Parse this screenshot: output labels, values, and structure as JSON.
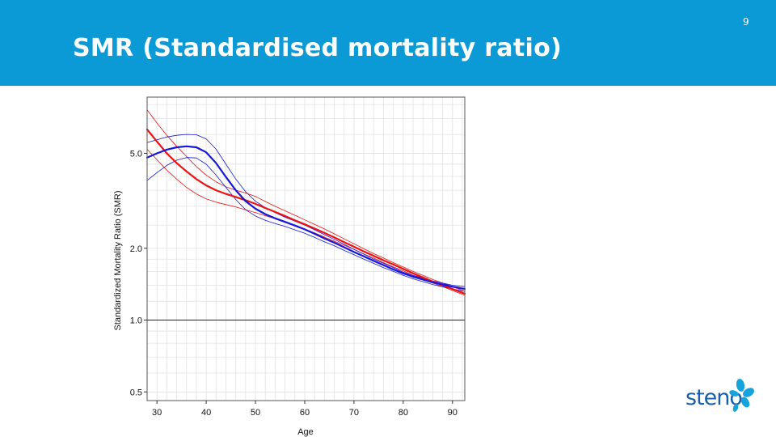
{
  "slide": {
    "title": "SMR (Standardised mortality ratio)",
    "page_number": "9"
  },
  "logo": {
    "text": "steno",
    "text_color": "#1b5fa8",
    "petal_color": "#16a3dc"
  },
  "colors": {
    "header_bg": "#0c9ad6",
    "red": "#ee1111",
    "blue": "#1616dd",
    "grid": "#e2e2e2",
    "reference_line": "#222222"
  },
  "chart_data": {
    "type": "line",
    "xlabel": "Age",
    "ylabel": "Standardized Mortality Ratio (SMR)",
    "x_ticks": [
      30,
      40,
      50,
      60,
      70,
      80,
      90
    ],
    "x_tick_labels": [
      "30",
      "40",
      "50",
      "60",
      "70",
      "80",
      "90"
    ],
    "y_scale": "log",
    "y_ticks": [
      0.5,
      1.0,
      2.0,
      5.0
    ],
    "y_tick_labels": [
      "0.5",
      "1.0",
      "2.0",
      "5.0"
    ],
    "xlim": [
      28,
      92.5
    ],
    "ylim": [
      0.46,
      8.6
    ],
    "grid": true,
    "reference_line": 1.0,
    "x": [
      28,
      30,
      32,
      34,
      36,
      38,
      40,
      42,
      44,
      46,
      48,
      50,
      52,
      54,
      56,
      58,
      60,
      62,
      64,
      66,
      68,
      70,
      72,
      74,
      76,
      78,
      80,
      82,
      84,
      86,
      88,
      90,
      92.5
    ],
    "series": [
      {
        "color": "#ee1111",
        "width": 2.2,
        "values": [
          6.3,
          5.6,
          5.0,
          4.55,
          4.2,
          3.9,
          3.67,
          3.5,
          3.38,
          3.28,
          3.18,
          3.07,
          2.95,
          2.84,
          2.73,
          2.62,
          2.52,
          2.42,
          2.32,
          2.22,
          2.12,
          2.03,
          1.94,
          1.86,
          1.78,
          1.71,
          1.64,
          1.57,
          1.51,
          1.45,
          1.4,
          1.35,
          1.29
        ]
      },
      {
        "color": "#ee1111",
        "width": 0.8,
        "values": [
          7.6,
          6.7,
          5.95,
          5.35,
          4.85,
          4.4,
          4.05,
          3.8,
          3.62,
          3.5,
          3.41,
          3.3,
          3.14,
          3.0,
          2.87,
          2.75,
          2.63,
          2.52,
          2.41,
          2.3,
          2.19,
          2.09,
          1.99,
          1.9,
          1.82,
          1.74,
          1.67,
          1.6,
          1.54,
          1.48,
          1.43,
          1.38,
          1.32
        ]
      },
      {
        "color": "#ee1111",
        "width": 0.8,
        "values": [
          5.2,
          4.7,
          4.25,
          3.9,
          3.6,
          3.38,
          3.22,
          3.12,
          3.05,
          2.98,
          2.9,
          2.82,
          2.74,
          2.66,
          2.58,
          2.5,
          2.41,
          2.32,
          2.23,
          2.14,
          2.06,
          1.98,
          1.89,
          1.82,
          1.74,
          1.67,
          1.61,
          1.54,
          1.49,
          1.43,
          1.38,
          1.33,
          1.27
        ]
      },
      {
        "color": "#1616dd",
        "width": 2.2,
        "values": [
          4.8,
          5.0,
          5.18,
          5.3,
          5.35,
          5.3,
          5.05,
          4.55,
          3.98,
          3.5,
          3.15,
          2.93,
          2.78,
          2.67,
          2.58,
          2.49,
          2.4,
          2.3,
          2.2,
          2.11,
          2.02,
          1.93,
          1.85,
          1.77,
          1.7,
          1.63,
          1.57,
          1.52,
          1.48,
          1.44,
          1.41,
          1.38,
          1.35
        ]
      },
      {
        "color": "#1616dd",
        "width": 0.8,
        "values": [
          5.55,
          5.7,
          5.85,
          5.95,
          6.0,
          5.98,
          5.75,
          5.2,
          4.5,
          3.9,
          3.45,
          3.15,
          2.96,
          2.82,
          2.7,
          2.6,
          2.5,
          2.39,
          2.28,
          2.18,
          2.08,
          1.98,
          1.89,
          1.8,
          1.73,
          1.66,
          1.59,
          1.54,
          1.5,
          1.46,
          1.43,
          1.4,
          1.38
        ]
      },
      {
        "color": "#1616dd",
        "width": 0.8,
        "values": [
          3.85,
          4.15,
          4.45,
          4.68,
          4.8,
          4.78,
          4.5,
          4.05,
          3.6,
          3.2,
          2.9,
          2.73,
          2.62,
          2.54,
          2.47,
          2.39,
          2.31,
          2.22,
          2.13,
          2.05,
          1.96,
          1.88,
          1.8,
          1.73,
          1.66,
          1.6,
          1.54,
          1.49,
          1.45,
          1.41,
          1.38,
          1.35,
          1.32
        ]
      }
    ]
  }
}
